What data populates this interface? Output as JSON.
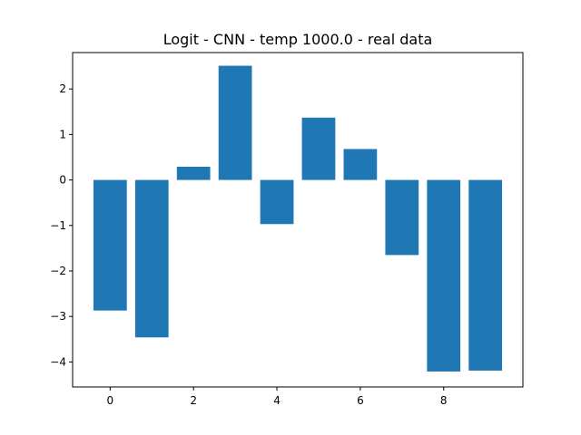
{
  "chart_data": {
    "type": "bar",
    "title": "Logit - CNN - temp 1000.0 - real data",
    "xlabel": "",
    "ylabel": "",
    "categories": [
      0,
      1,
      2,
      3,
      4,
      5,
      6,
      7,
      8,
      9
    ],
    "values": [
      -2.87,
      -3.46,
      0.29,
      2.51,
      -0.97,
      1.37,
      0.68,
      -1.65,
      -4.21,
      -4.19
    ],
    "xlim": [
      -0.9,
      9.9
    ],
    "ylim": [
      -4.55,
      2.8
    ],
    "xticks": [
      0,
      2,
      4,
      6,
      8
    ],
    "xtick_labels": [
      "0",
      "2",
      "4",
      "6",
      "8"
    ],
    "yticks": [
      2,
      1,
      0,
      -1,
      -2,
      -3,
      -4
    ],
    "ytick_labels": [
      "2",
      "1",
      "0",
      "−1",
      "−2",
      "−3",
      "−4"
    ],
    "bar_color": "#1f77b4",
    "grid": false,
    "legend": "none"
  }
}
